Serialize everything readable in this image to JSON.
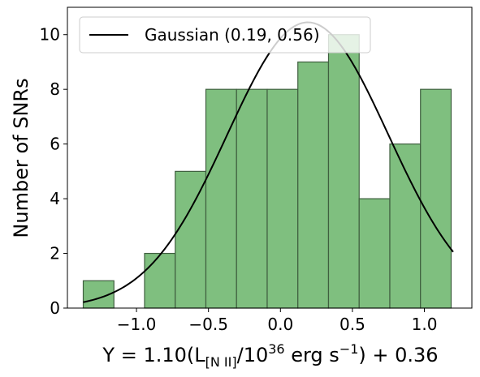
{
  "chart_data": {
    "type": "bar",
    "subtype": "histogram-with-gaussian-fit",
    "xlabel": "Y = 1.10(L",
    "xlabel_sub": "[N II]",
    "xlabel_mid": "/10",
    "xlabel_sup": "36",
    "xlabel_unit": " erg s",
    "xlabel_unit_sup": "−1",
    "xlabel_tail": ") + 0.36",
    "ylabel": "Number of SNRs",
    "xlim": [
      -1.48,
      1.33
    ],
    "ylim": [
      0,
      11
    ],
    "xticks": [
      -1.0,
      -0.5,
      0.0,
      0.5,
      1.0
    ],
    "xtick_labels": [
      "−1.0",
      "−0.5",
      "0.0",
      "0.5",
      "1.0"
    ],
    "yticks": [
      0,
      2,
      4,
      6,
      8,
      10
    ],
    "ytick_labels": [
      "0",
      "2",
      "4",
      "6",
      "8",
      "10"
    ],
    "grid": false,
    "legend_position": "top-left",
    "series": [
      {
        "name": "",
        "kind": "histogram",
        "color": "#7fbf7f",
        "edgecolor": "#3f5f3f",
        "bin_edges": [
          -1.37,
          -1.157,
          -0.944,
          -0.731,
          -0.518,
          -0.305,
          -0.092,
          0.121,
          0.334,
          0.547,
          0.76,
          0.973,
          1.186
        ],
        "counts": [
          1,
          0,
          2,
          5,
          8,
          8,
          8,
          9,
          10,
          4,
          6,
          8
        ]
      },
      {
        "name": "Gaussian (0.19, 0.56)",
        "kind": "line",
        "color": "#000000",
        "mean": 0.19,
        "sigma": 0.56,
        "amplitude": 10.45,
        "x_range": [
          -1.37,
          1.2
        ]
      }
    ]
  }
}
